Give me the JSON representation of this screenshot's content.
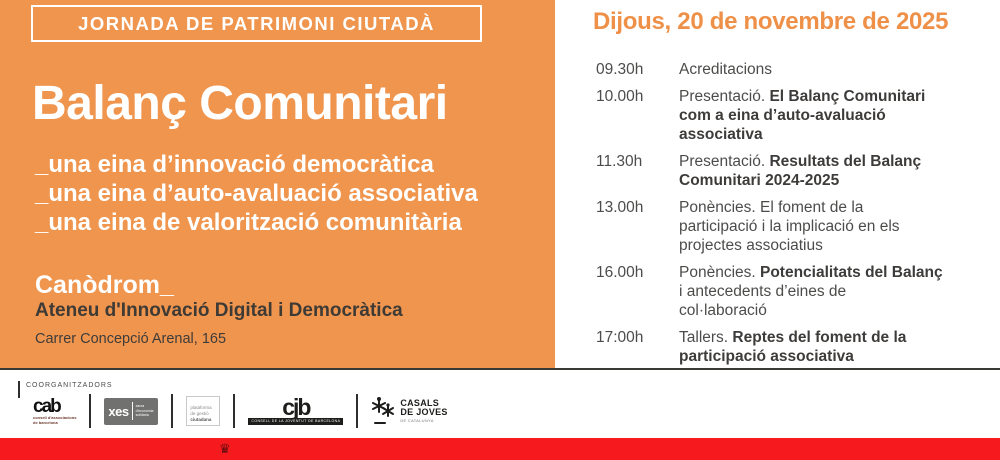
{
  "left": {
    "kicker": "JORNADA DE PATRIMONI CIUTADÀ",
    "title": "Balanç Comunitari",
    "subtitle_lines": [
      "_una eina d’innovació democràtica",
      "_una eina d’auto-avaluació associativa",
      "_una eina de valorització comunitària"
    ],
    "venue": {
      "name": "Canòdrom_",
      "subtitle": "Ateneu d'Innovació Digital i Democràtica",
      "address": "Carrer Concepció Arenal, 165"
    }
  },
  "right": {
    "date_heading": "Dijous, 20 de novembre de 2025",
    "schedule": [
      {
        "time": "09.30h",
        "lines": [
          [
            {
              "t": "Acreditacions",
              "b": false
            }
          ]
        ]
      },
      {
        "time": "10.00h",
        "lines": [
          [
            {
              "t": "Presentació. ",
              "b": false
            },
            {
              "t": "El Balanç Comunitari",
              "b": true
            }
          ],
          [
            {
              "t": "com a eina d’auto-avaluació",
              "b": true
            }
          ],
          [
            {
              "t": "associativa",
              "b": true
            }
          ]
        ]
      },
      {
        "time": "11.30h",
        "lines": [
          [
            {
              "t": "Presentació. ",
              "b": false
            },
            {
              "t": "Resultats del Balanç",
              "b": true
            }
          ],
          [
            {
              "t": "Comunitari 2024-2025",
              "b": true
            }
          ]
        ]
      },
      {
        "time": "13.00h",
        "lines": [
          [
            {
              "t": "Ponències. El foment de la",
              "b": false
            }
          ],
          [
            {
              "t": "participació i la implicació en els",
              "b": false
            }
          ],
          [
            {
              "t": "projectes associatius",
              "b": false
            }
          ]
        ]
      },
      {
        "time": "16.00h",
        "lines": [
          [
            {
              "t": "Ponències. ",
              "b": false
            },
            {
              "t": "Potencialitats del Balanç",
              "b": true
            }
          ],
          [
            {
              "t": "i antecedents d’eines de",
              "b": false
            }
          ],
          [
            {
              "t": "col·laboració",
              "b": false
            }
          ]
        ]
      },
      {
        "time": "17:00h",
        "lines": [
          [
            {
              "t": "Tallers. ",
              "b": false
            },
            {
              "t": "Reptes del foment de la",
              "b": true
            }
          ],
          [
            {
              "t": "participació associativa",
              "b": true
            }
          ]
        ]
      }
    ]
  },
  "footer": {
    "label": "COORGANITZADORS",
    "logos": {
      "cab": {
        "mark": "cab",
        "line1": "consell d'associacions",
        "line2": "de barcelona"
      },
      "xes": {
        "mark": "xes",
        "line1": "xarxa",
        "line2": "d'economia",
        "line3": "solidària"
      },
      "plataforma": {
        "line1": "plataforma",
        "line2": "de gestió",
        "line3": "ciutadana"
      },
      "cjb": {
        "mark": "cjb",
        "strip": "consell de la joventut de barcelona"
      },
      "casals": {
        "line1": "CASALS",
        "line2": "DE JOVES",
        "line3": "DE CATALUNYA"
      }
    }
  },
  "banner": {
    "crown_icon": "♛"
  },
  "colors": {
    "panel_orange": "#F0954E",
    "heading_orange": "#EE9048",
    "dark_text": "#3E3C3A",
    "body_gray": "#4D4C4B",
    "banner_red": "#F6191D"
  }
}
